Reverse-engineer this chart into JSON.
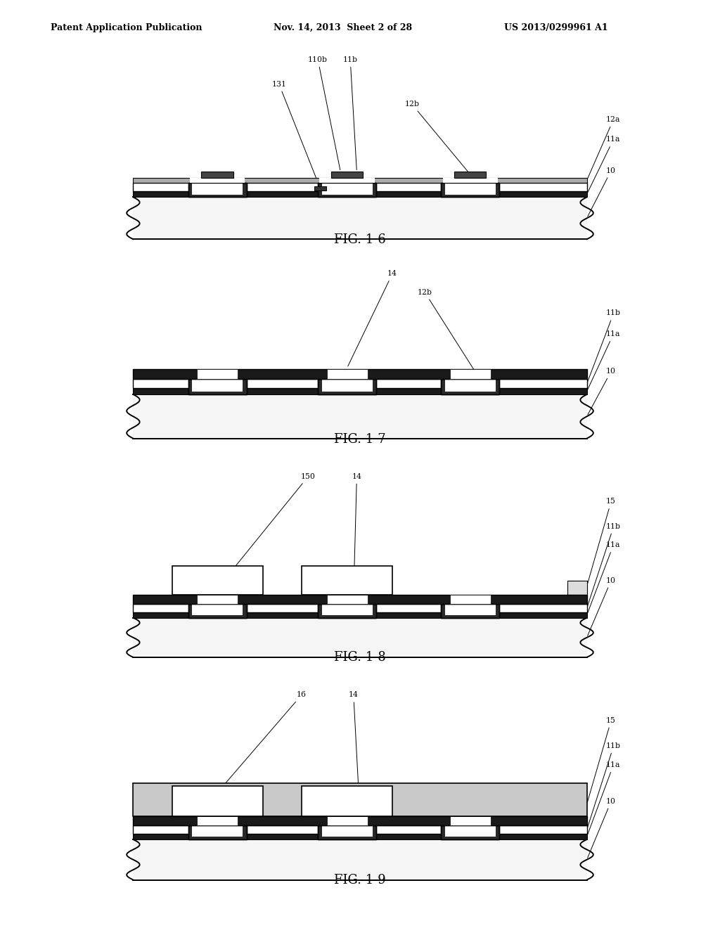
{
  "header_left": "Patent Application Publication",
  "header_mid": "Nov. 14, 2013  Sheet 2 of 28",
  "header_right": "US 2013/0299961 A1",
  "fig_labels": [
    "FIG. 1-6",
    "FIG. 1-7",
    "FIG. 1-8",
    "FIG. 1-9"
  ],
  "bg_color": "#ffffff",
  "line_color": "#000000",
  "dark_color": "#1a1a1a",
  "substrate_color": "#f5f5f5",
  "pad_dark": "#2a2a2a",
  "layer14_color": "#1a1a1a",
  "chip_color": "#ffffff",
  "encap_color": "#cccccc"
}
